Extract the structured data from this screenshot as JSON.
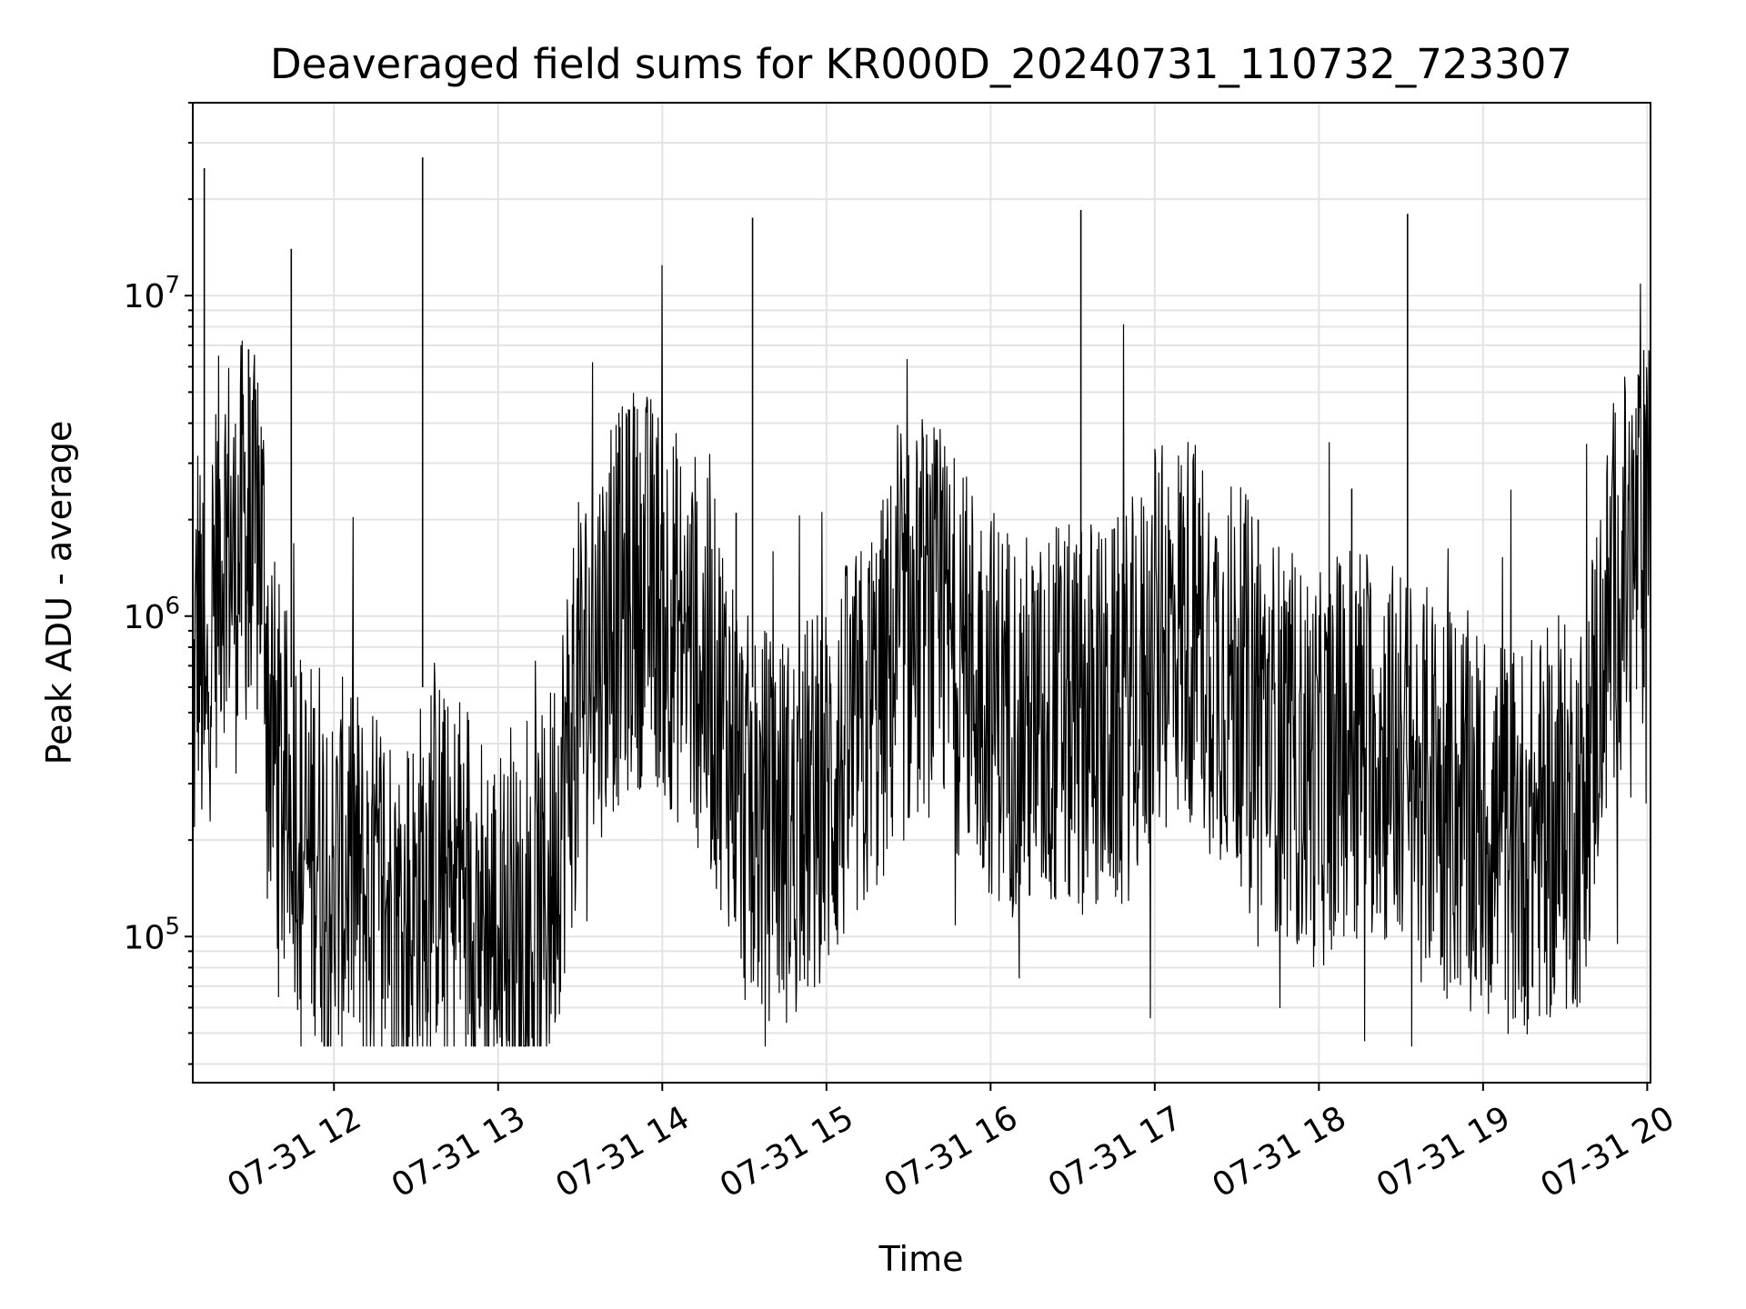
{
  "chart_data": {
    "type": "line",
    "title": "Deaveraged field sums for KR000D_20240731_110732_723307",
    "xlabel": "Time",
    "ylabel": "Peak ADU - average",
    "yscale": "log",
    "ylim": [
      35000,
      40000000
    ],
    "xlim_hours": [
      11.14,
      20.02
    ],
    "x_ticks": [
      {
        "hour": 12,
        "label": "07-31 12"
      },
      {
        "hour": 13,
        "label": "07-31 13"
      },
      {
        "hour": 14,
        "label": "07-31 14"
      },
      {
        "hour": 15,
        "label": "07-31 15"
      },
      {
        "hour": 16,
        "label": "07-31 16"
      },
      {
        "hour": 17,
        "label": "07-31 17"
      },
      {
        "hour": 18,
        "label": "07-31 18"
      },
      {
        "hour": 19,
        "label": "07-31 19"
      },
      {
        "hour": 20,
        "label": "07-31 20"
      }
    ],
    "y_ticks": [
      {
        "value": 100000,
        "base": "10",
        "exp": "5"
      },
      {
        "value": 1000000,
        "base": "10",
        "exp": "6"
      },
      {
        "value": 10000000,
        "base": "10",
        "exp": "7"
      }
    ],
    "grid": true,
    "line_color": "#000000",
    "series": [
      {
        "name": "Peak ADU - average",
        "points": [
          [
            11.14,
            400000
          ],
          [
            11.17,
            1100000
          ],
          [
            11.2,
            600000
          ],
          [
            11.22,
            350000
          ],
          [
            11.24,
            900000
          ],
          [
            11.3,
            1600000
          ],
          [
            11.35,
            1900000
          ],
          [
            11.4,
            1300000
          ],
          [
            11.45,
            2000000
          ],
          [
            11.5,
            1500000
          ],
          [
            11.55,
            1800000
          ],
          [
            11.58,
            1200000
          ],
          [
            11.6,
            500000
          ],
          [
            11.65,
            350000
          ],
          [
            11.7,
            250000
          ],
          [
            11.75,
            300000
          ],
          [
            11.8,
            200000
          ],
          [
            11.85,
            170000
          ],
          [
            11.9,
            220000
          ],
          [
            11.95,
            150000
          ],
          [
            12.0,
            130000
          ],
          [
            12.1,
            180000
          ],
          [
            12.2,
            120000
          ],
          [
            12.3,
            140000
          ],
          [
            12.4,
            110000
          ],
          [
            12.5,
            120000
          ],
          [
            12.6,
            200000
          ],
          [
            12.7,
            130000
          ],
          [
            12.8,
            160000
          ],
          [
            12.9,
            110000
          ],
          [
            13.0,
            100000
          ],
          [
            13.1,
            90000
          ],
          [
            13.2,
            95000
          ],
          [
            13.3,
            130000
          ],
          [
            13.4,
            300000
          ],
          [
            13.5,
            600000
          ],
          [
            13.6,
            800000
          ],
          [
            13.7,
            1000000
          ],
          [
            13.8,
            1150000
          ],
          [
            13.9,
            1250000
          ],
          [
            14.0,
            1150000
          ],
          [
            14.1,
            900000
          ],
          [
            14.2,
            800000
          ],
          [
            14.3,
            600000
          ],
          [
            14.4,
            450000
          ],
          [
            14.5,
            250000
          ],
          [
            14.6,
            220000
          ],
          [
            14.7,
            230000
          ],
          [
            14.8,
            210000
          ],
          [
            14.9,
            250000
          ],
          [
            15.0,
            280000
          ],
          [
            15.1,
            350000
          ],
          [
            15.2,
            400000
          ],
          [
            15.3,
            500000
          ],
          [
            15.4,
            700000
          ],
          [
            15.5,
            850000
          ],
          [
            15.6,
            1000000
          ],
          [
            15.7,
            900000
          ],
          [
            15.8,
            750000
          ],
          [
            15.9,
            650000
          ],
          [
            16.0,
            550000
          ],
          [
            16.1,
            500000
          ],
          [
            16.2,
            450000
          ],
          [
            16.3,
            420000
          ],
          [
            16.4,
            500000
          ],
          [
            16.5,
            450000
          ],
          [
            16.6,
            520000
          ],
          [
            16.7,
            450000
          ],
          [
            16.8,
            500000
          ],
          [
            16.9,
            600000
          ],
          [
            17.0,
            750000
          ],
          [
            17.1,
            900000
          ],
          [
            17.2,
            950000
          ],
          [
            17.3,
            800000
          ],
          [
            17.4,
            700000
          ],
          [
            17.5,
            620000
          ],
          [
            17.6,
            550000
          ],
          [
            17.7,
            450000
          ],
          [
            17.8,
            400000
          ],
          [
            17.9,
            350000
          ],
          [
            18.0,
            320000
          ],
          [
            18.1,
            380000
          ],
          [
            18.2,
            450000
          ],
          [
            18.3,
            420000
          ],
          [
            18.4,
            380000
          ],
          [
            18.5,
            350000
          ],
          [
            18.6,
            300000
          ],
          [
            18.7,
            300000
          ],
          [
            18.8,
            270000
          ],
          [
            18.9,
            250000
          ],
          [
            19.0,
            220000
          ],
          [
            19.1,
            210000
          ],
          [
            19.2,
            200000
          ],
          [
            19.3,
            210000
          ],
          [
            19.4,
            220000
          ],
          [
            19.5,
            230000
          ],
          [
            19.6,
            250000
          ],
          [
            19.7,
            600000
          ],
          [
            19.8,
            1200000
          ],
          [
            19.9,
            1500000
          ],
          [
            20.02,
            1800000
          ]
        ]
      }
    ],
    "spikes": [
      [
        11.21,
        25000000
      ],
      [
        11.48,
        6800000
      ],
      [
        11.74,
        14000000
      ],
      [
        12.54,
        27000000
      ],
      [
        14.45,
        2100000
      ],
      [
        14.55,
        17500000
      ],
      [
        16.55,
        18500000
      ],
      [
        18.2,
        2500000
      ],
      [
        18.54,
        18000000
      ],
      [
        17.63,
        2000000
      ],
      [
        19.98,
        2800000
      ]
    ]
  }
}
